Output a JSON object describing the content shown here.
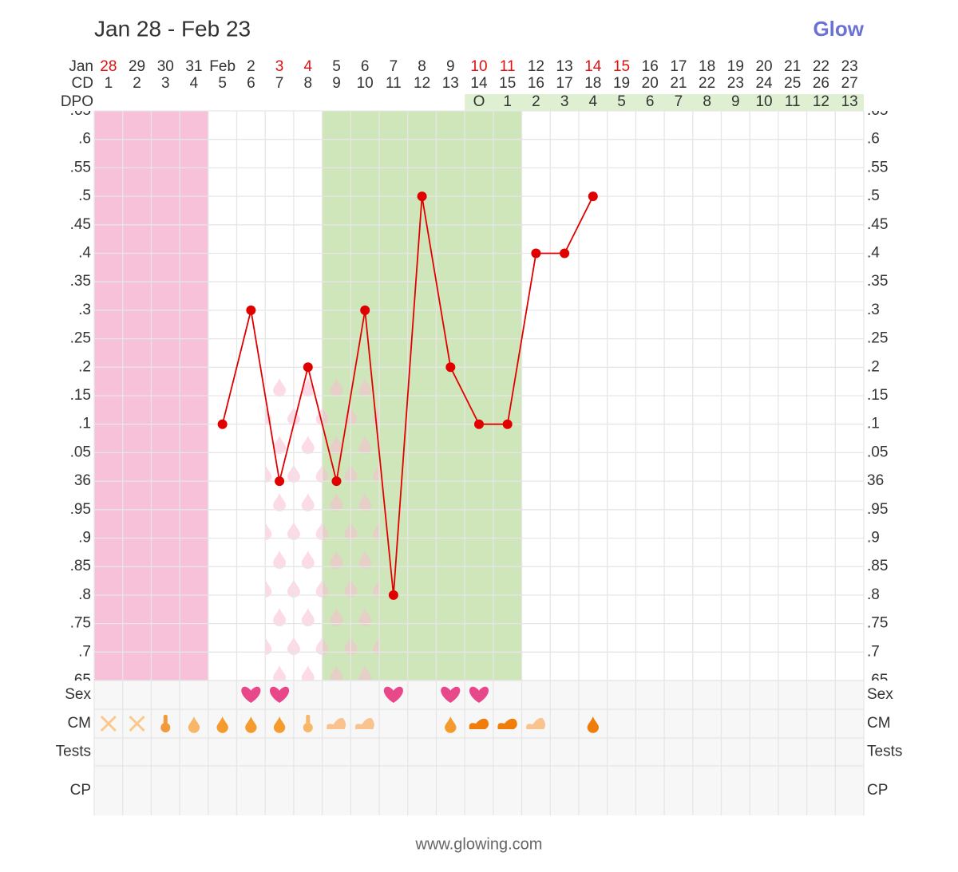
{
  "chart_data": {
    "type": "line",
    "title": "Jan 28 - Feb 23",
    "brand": "Glow",
    "footer": "www.glowing.com",
    "month_label": "Jan",
    "categories": [
      "28",
      "29",
      "30",
      "31",
      "Feb",
      "2",
      "3",
      "4",
      "5",
      "6",
      "7",
      "8",
      "9",
      "10",
      "11",
      "12",
      "13",
      "14",
      "15",
      "16",
      "17",
      "18",
      "19",
      "20",
      "21",
      "22",
      "23"
    ],
    "category_colors": [
      "#e01010",
      "#333",
      "#333",
      "#333",
      "#333",
      "#333",
      "#e01010",
      "#e01010",
      "#333",
      "#333",
      "#333",
      "#333",
      "#333",
      "#e01010",
      "#e01010",
      "#333",
      "#333",
      "#e01010",
      "#e01010",
      "#333",
      "#333",
      "#333",
      "#333",
      "#333",
      "#333",
      "#333",
      "#333"
    ],
    "cd_label": "CD",
    "cd": [
      1,
      2,
      3,
      4,
      5,
      6,
      7,
      8,
      9,
      10,
      11,
      12,
      13,
      14,
      15,
      16,
      17,
      18,
      19,
      20,
      21,
      22,
      23,
      24,
      25,
      26,
      27
    ],
    "dpo_label": "DPO",
    "dpo": [
      null,
      null,
      null,
      null,
      null,
      null,
      null,
      null,
      null,
      null,
      null,
      null,
      null,
      "O",
      1,
      2,
      3,
      4,
      5,
      6,
      7,
      8,
      9,
      10,
      11,
      12,
      13
    ],
    "series": [
      {
        "color": "#e00000",
        "values": [
          null,
          null,
          null,
          null,
          36.1,
          36.3,
          36.0,
          36.2,
          36.0,
          36.3,
          35.8,
          36.5,
          36.2,
          36.1,
          36.1,
          36.4,
          36.4,
          36.5,
          null,
          null,
          null,
          null,
          null,
          null,
          null,
          null,
          null
        ]
      }
    ],
    "ylim": [
      35.65,
      36.65
    ],
    "yticks": [
      {
        "value": 36.65,
        "label": ".65"
      },
      {
        "value": 36.6,
        "label": ".6"
      },
      {
        "value": 36.55,
        "label": ".55"
      },
      {
        "value": 36.5,
        "label": ".5"
      },
      {
        "value": 36.45,
        "label": ".45"
      },
      {
        "value": 36.4,
        "label": ".4"
      },
      {
        "value": 36.35,
        "label": ".35"
      },
      {
        "value": 36.3,
        "label": ".3"
      },
      {
        "value": 36.25,
        "label": ".25"
      },
      {
        "value": 36.2,
        "label": ".2"
      },
      {
        "value": 36.15,
        "label": ".15"
      },
      {
        "value": 36.1,
        "label": ".1"
      },
      {
        "value": 36.05,
        "label": ".05"
      },
      36,
      {
        "value": 35.95,
        "label": ".95"
      },
      {
        "value": 35.9,
        "label": ".9"
      },
      {
        "value": 35.85,
        "label": ".85"
      },
      {
        "value": 35.8,
        "label": ".8"
      },
      {
        "value": 35.75,
        "label": ".75"
      },
      {
        "value": 35.7,
        "label": ".7"
      },
      {
        "value": 35.65,
        "label": ".65"
      }
    ],
    "grid": true,
    "period": [
      0,
      3
    ],
    "period_color": "#f7c1da",
    "fertile_window": [
      8,
      14
    ],
    "fertile_color": "#cfe6bb",
    "spotting": [
      6,
      9
    ],
    "spotting_color": "#f9bcd2",
    "row_labels": [
      "Sex",
      "CM",
      "Tests",
      "CP"
    ],
    "sex": [
      false,
      false,
      false,
      false,
      false,
      true,
      true,
      false,
      false,
      false,
      true,
      false,
      true,
      true,
      false,
      false,
      false,
      false,
      false,
      false,
      false,
      false,
      false,
      false,
      false,
      false,
      false
    ],
    "sex_color": "#e8488a",
    "cm": [
      {
        "shape": "cross",
        "color": "#fbc98a"
      },
      {
        "shape": "cross",
        "color": "#fbc98a"
      },
      {
        "shape": "sticky",
        "color": "#f29a3a"
      },
      {
        "shape": "drop",
        "color": "#f7b668"
      },
      {
        "shape": "drop",
        "color": "#f59b2e"
      },
      {
        "shape": "drop",
        "color": "#f59b2e"
      },
      {
        "shape": "drop",
        "color": "#f59b2e"
      },
      {
        "shape": "sticky",
        "color": "#f7b668"
      },
      {
        "shape": "creamy",
        "color": "#f9c38f"
      },
      {
        "shape": "creamy",
        "color": "#f9c38f"
      },
      null,
      null,
      {
        "shape": "drop",
        "color": "#f59b2e"
      },
      {
        "shape": "eggwhite",
        "color": "#f07d0a"
      },
      {
        "shape": "eggwhite",
        "color": "#f07d0a"
      },
      {
        "shape": "creamy",
        "color": "#f9c38f"
      },
      null,
      {
        "shape": "drop",
        "color": "#f07d0a"
      },
      null,
      null,
      null,
      null,
      null,
      null,
      null,
      null,
      null
    ]
  }
}
